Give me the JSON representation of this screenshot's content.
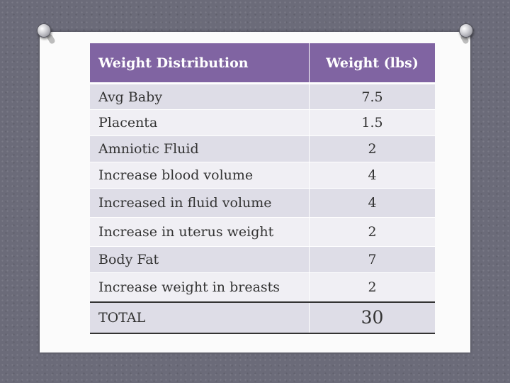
{
  "table": {
    "headers": [
      "Weight Distribution",
      "Weight (lbs)"
    ],
    "rows": [
      {
        "label": "Avg Baby",
        "value": "7.5"
      },
      {
        "label": "Placenta",
        "value": "1.5"
      },
      {
        "label": "Amniotic Fluid",
        "value": "2"
      },
      {
        "label": "Increase blood volume",
        "value": "4"
      },
      {
        "label": "Increased in fluid volume",
        "value": "4"
      },
      {
        "label": "Increase in uterus weight",
        "value": "2"
      },
      {
        "label": "Body Fat",
        "value": "7"
      },
      {
        "label": "Increase weight in breasts",
        "value": "2"
      }
    ],
    "total": {
      "label": "TOTAL",
      "value": "30"
    }
  },
  "colors": {
    "header_bg": "#8064a2",
    "row_odd": "#dedde7",
    "row_even": "#f0eff4",
    "background": "#6b6b79"
  }
}
